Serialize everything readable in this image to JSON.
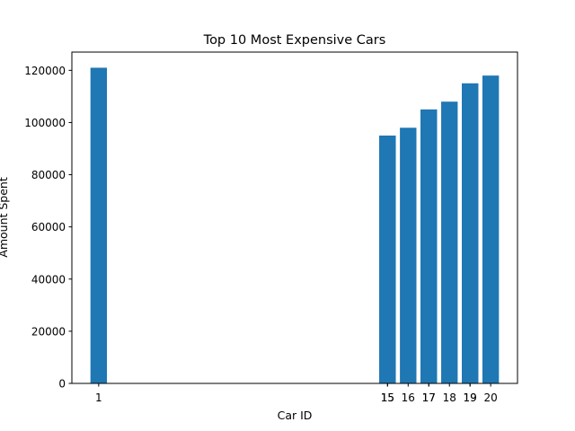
{
  "chart_data": {
    "type": "bar",
    "title": "Top 10 Most Expensive Cars",
    "xlabel": "Car ID",
    "ylabel": "Amount Spent",
    "x": [
      1,
      15,
      15,
      16,
      17,
      17,
      18,
      19,
      19,
      20
    ],
    "values": [
      121000,
      95000,
      95000,
      98000,
      105000,
      105000,
      108000,
      115000,
      115000,
      118000
    ],
    "xlim": [
      -0.3,
      21.3
    ],
    "ylim": [
      0,
      127000
    ],
    "yticks": [
      0,
      20000,
      40000,
      60000,
      80000,
      100000,
      120000
    ],
    "ytick_labels": [
      "0",
      "20000",
      "40000",
      "60000",
      "80000",
      "100000",
      "120000"
    ],
    "xtick_labels": [
      "1",
      "15",
      "15",
      "16",
      "17",
      "17",
      "18",
      "19",
      "19",
      "20"
    ],
    "bar_color": "#1f77b4",
    "grid": false,
    "legend": "none"
  }
}
